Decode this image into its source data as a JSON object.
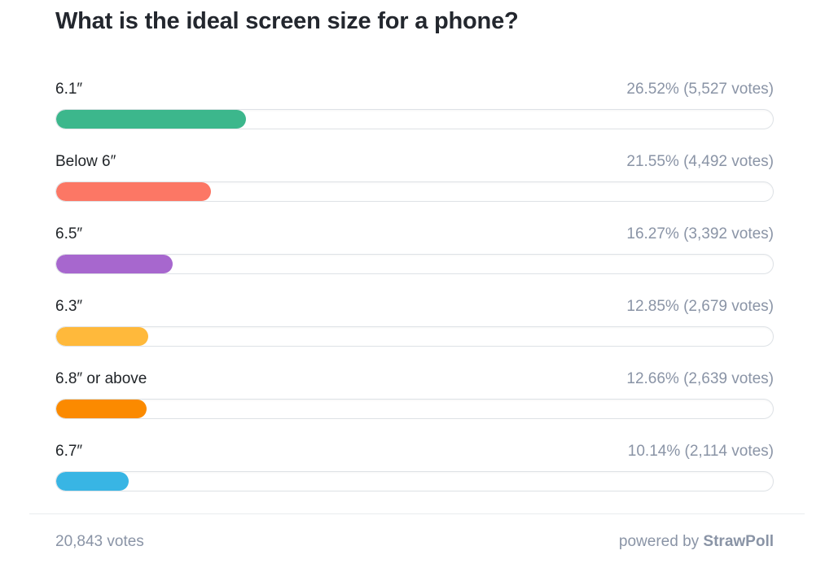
{
  "page": {
    "title": "What is the ideal screen size for a phone?"
  },
  "options": [
    {
      "label": "6.1″",
      "stats": "26.52% (5,527 votes)",
      "percent": 26.52,
      "votes": "5,527",
      "color": "#3cb78c"
    },
    {
      "label": "Below 6″",
      "stats": "21.55% (4,492 votes)",
      "percent": 21.55,
      "votes": "4,492",
      "color": "#fc7765"
    },
    {
      "label": "6.5″",
      "stats": "16.27% (3,392 votes)",
      "percent": 16.27,
      "votes": "3,392",
      "color": "#a767ce"
    },
    {
      "label": "6.3″",
      "stats": "12.85% (2,679 votes)",
      "percent": 12.85,
      "votes": "2,679",
      "color": "#ffb93b"
    },
    {
      "label": "6.8″ or above",
      "stats": "12.66% (2,639 votes)",
      "percent": 12.66,
      "votes": "2,639",
      "color": "#fb8a00"
    },
    {
      "label": "6.7″",
      "stats": "10.14% (2,114 votes)",
      "percent": 10.14,
      "votes": "2,114",
      "color": "#38b5e4"
    }
  ],
  "footer": {
    "total_votes": "20,843 votes",
    "powered_by": "powered by",
    "brand": "StrawPoll"
  },
  "chart_data": {
    "type": "bar",
    "orientation": "horizontal",
    "title": "What is the ideal screen size for a phone?",
    "categories": [
      "6.1″",
      "Below 6″",
      "6.5″",
      "6.3″",
      "6.8″ or above",
      "6.7″"
    ],
    "values": [
      26.52,
      21.55,
      16.27,
      12.85,
      12.66,
      10.14
    ],
    "votes": [
      5527,
      4492,
      3392,
      2679,
      2639,
      2114
    ],
    "value_unit": "percent",
    "total_votes": 20843,
    "xlim": [
      0,
      100
    ],
    "grid": false,
    "legend": "none",
    "bar_colors": [
      "#3cb78c",
      "#fc7765",
      "#a767ce",
      "#ffb93b",
      "#fb8a00",
      "#38b5e4"
    ]
  }
}
